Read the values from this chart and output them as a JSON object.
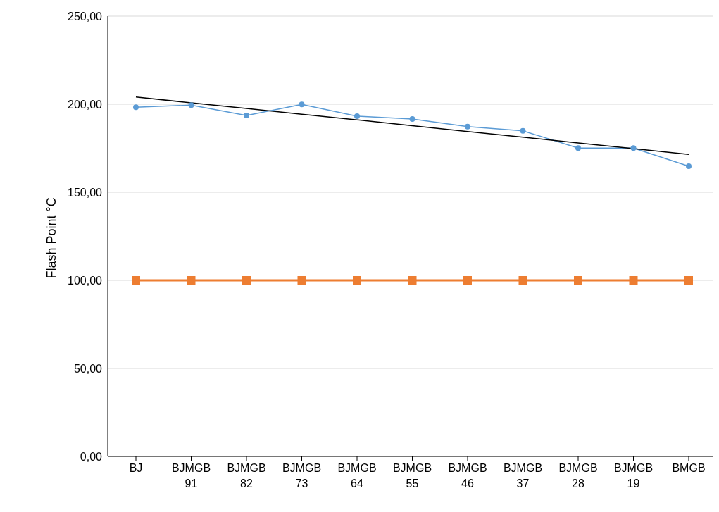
{
  "chart_data": {
    "type": "line",
    "ylabel": "Flash Point °C",
    "categories": [
      "BJ",
      "BJMGB 91",
      "BJMGB 82",
      "BJMGB 73",
      "BJMGB 64",
      "BJMGB 55",
      "BJMGB 46",
      "BJMGB 37",
      "BJMGB 28",
      "BJMGB 19",
      "BMGB"
    ],
    "series": [
      {
        "color": "#5b9bd5",
        "marker": "circle",
        "values": [
          198.3,
          199.5,
          193.6,
          199.9,
          193.2,
          191.6,
          187.3,
          184.9,
          175.1,
          175.1,
          164.8
        ]
      },
      {
        "color": "#ed7d31",
        "marker": "square",
        "values": [
          100,
          100,
          100,
          100,
          100,
          100,
          100,
          100,
          100,
          100,
          100
        ]
      },
      {
        "color": "#000000",
        "marker": "none",
        "values": [
          204.1,
          200.8,
          197.6,
          194.3,
          191.1,
          187.8,
          184.5,
          181.3,
          178.0,
          174.8,
          171.5
        ]
      }
    ],
    "ylim": [
      0,
      250
    ],
    "yticks": [
      {
        "value": 0,
        "label": "0,00"
      },
      {
        "value": 50,
        "label": "50,00"
      },
      {
        "value": 100,
        "label": "100,00"
      },
      {
        "value": 150,
        "label": "150,00"
      },
      {
        "value": 200,
        "label": "200,00"
      },
      {
        "value": 250,
        "label": "250,00"
      }
    ],
    "grid": "y",
    "legend": false
  }
}
